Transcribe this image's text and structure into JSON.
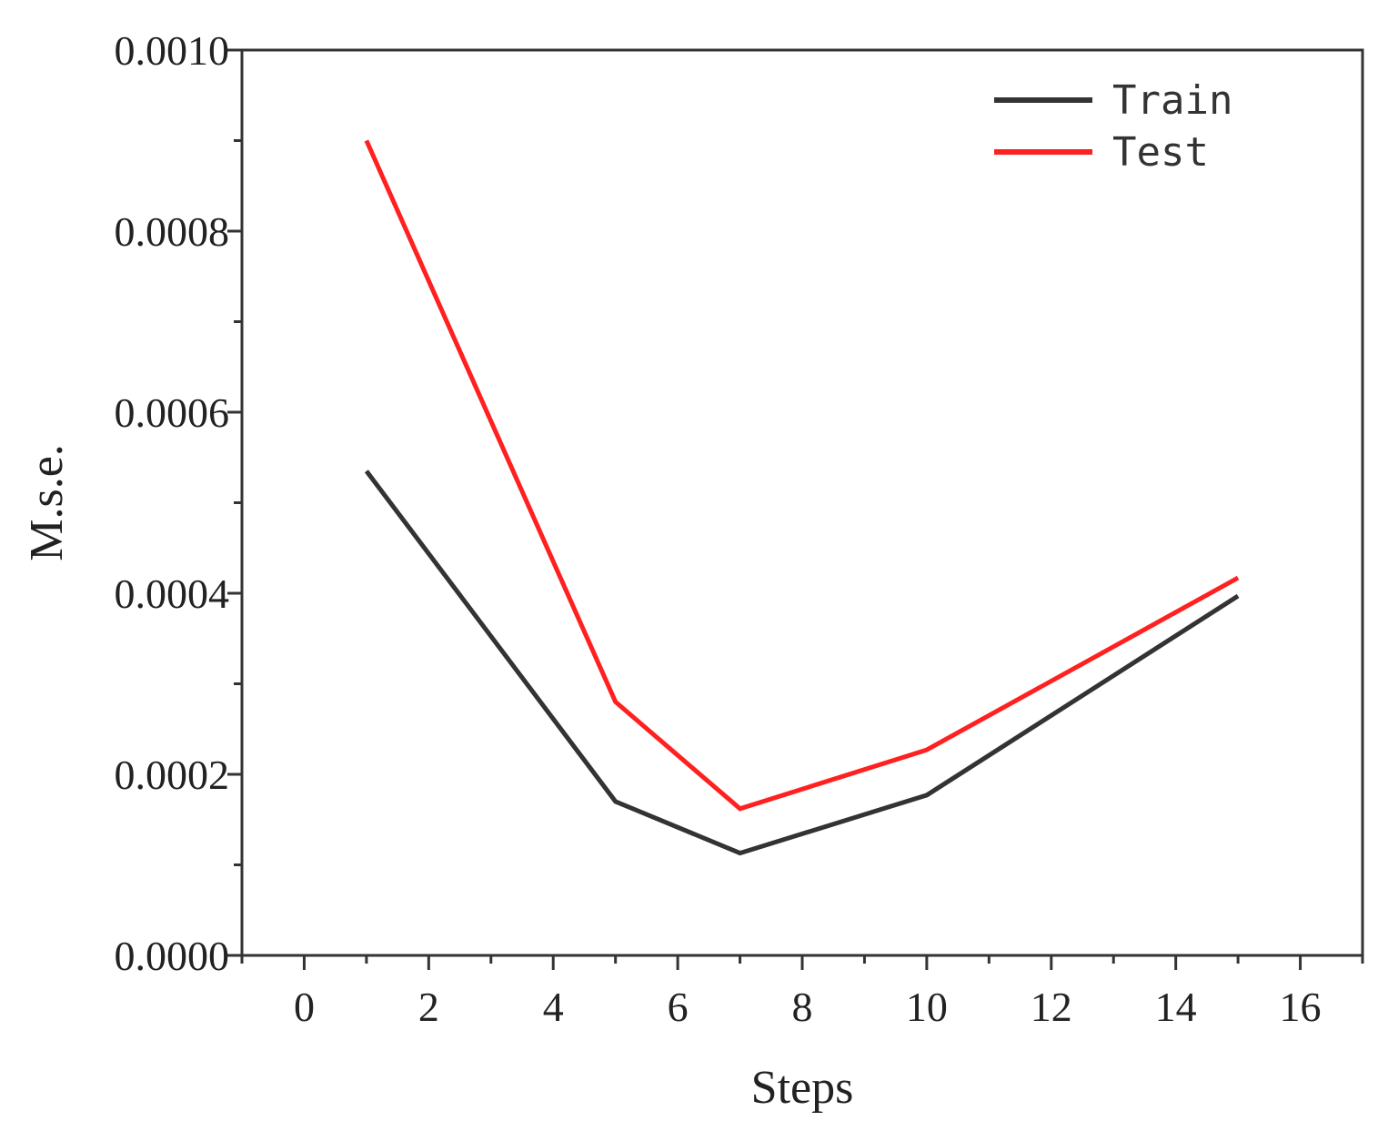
{
  "chart_data": {
    "type": "line",
    "title": "",
    "xlabel": "Steps",
    "ylabel": "M.s.e.",
    "xlim": [
      -1,
      17
    ],
    "ylim": [
      0,
      0.001
    ],
    "xticks": [
      0,
      2,
      4,
      6,
      8,
      10,
      12,
      14,
      16
    ],
    "xtick_labels": [
      "0",
      "2",
      "4",
      "6",
      "8",
      "10",
      "12",
      "14",
      "16"
    ],
    "yticks": [
      0,
      0.0002,
      0.0004,
      0.0006,
      0.0008,
      0.001
    ],
    "ytick_labels": [
      "0.0000",
      "0.0002",
      "0.0004",
      "0.0006",
      "0.0008",
      "0.0010"
    ],
    "grid": false,
    "legend_position": "top-right",
    "x": [
      1,
      5,
      7,
      10,
      15
    ],
    "series": [
      {
        "name": "Train",
        "color": "#333333",
        "values": [
          0.000535,
          0.00017,
          0.000113,
          0.000177,
          0.000397
        ]
      },
      {
        "name": "Test",
        "color": "#ff2020",
        "values": [
          0.0009,
          0.00028,
          0.000162,
          0.000227,
          0.000417
        ]
      }
    ]
  }
}
